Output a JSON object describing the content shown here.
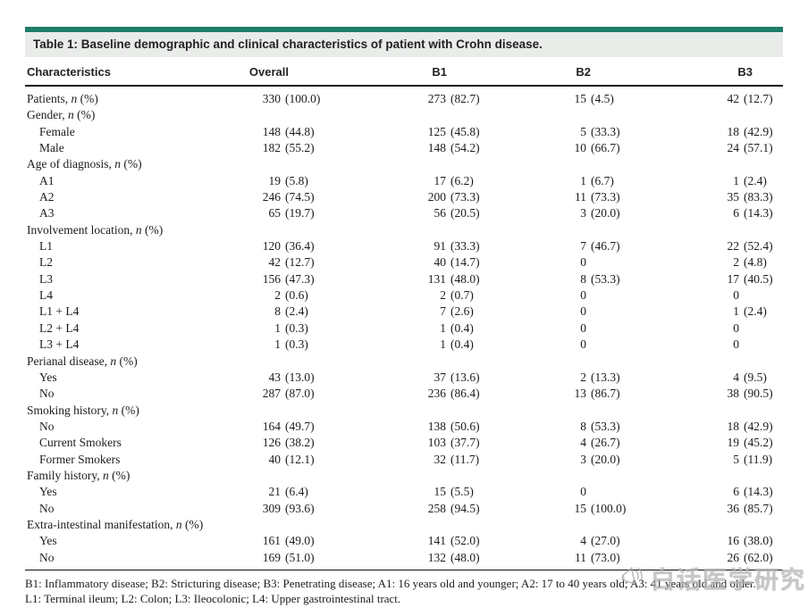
{
  "title": "Table 1: Baseline demographic and clinical characteristics of patient with Crohn disease.",
  "colors": {
    "accent_bar": "#1e7e68",
    "title_band_bg": "#e9ece9",
    "rule": "#0d0d0d"
  },
  "table": {
    "columns": [
      "Characteristics",
      "Overall",
      "B1",
      "B2",
      "B3"
    ],
    "rows": [
      {
        "label": "Patients, n (%)",
        "indent": 0,
        "cells": [
          "330 (100.0)",
          "273 (82.7)",
          "15 (4.5)",
          "42 (12.7)"
        ]
      },
      {
        "label": "Gender, n (%)",
        "indent": 0,
        "cells": [
          "",
          "",
          "",
          ""
        ]
      },
      {
        "label": "Female",
        "indent": 1,
        "cells": [
          "148 (44.8)",
          "125 (45.8)",
          "5 (33.3)",
          "18 (42.9)"
        ]
      },
      {
        "label": "Male",
        "indent": 1,
        "cells": [
          "182 (55.2)",
          "148 (54.2)",
          "10 (66.7)",
          "24 (57.1)"
        ]
      },
      {
        "label": "Age of diagnosis, n (%)",
        "indent": 0,
        "cells": [
          "",
          "",
          "",
          ""
        ]
      },
      {
        "label": "A1",
        "indent": 1,
        "cells": [
          "19 (5.8)",
          "17 (6.2)",
          "1 (6.7)",
          "1 (2.4)"
        ]
      },
      {
        "label": "A2",
        "indent": 1,
        "cells": [
          "246 (74.5)",
          "200 (73.3)",
          "11 (73.3)",
          "35 (83.3)"
        ]
      },
      {
        "label": "A3",
        "indent": 1,
        "cells": [
          "65 (19.7)",
          "56 (20.5)",
          "3 (20.0)",
          "6 (14.3)"
        ]
      },
      {
        "label": "Involvement location, n (%)",
        "indent": 0,
        "cells": [
          "",
          "",
          "",
          ""
        ]
      },
      {
        "label": "L1",
        "indent": 1,
        "cells": [
          "120 (36.4)",
          "91 (33.3)",
          "7 (46.7)",
          "22 (52.4)"
        ]
      },
      {
        "label": "L2",
        "indent": 1,
        "cells": [
          "42 (12.7)",
          "40 (14.7)",
          "0",
          "2 (4.8)"
        ]
      },
      {
        "label": "L3",
        "indent": 1,
        "cells": [
          "156 (47.3)",
          "131 (48.0)",
          "8 (53.3)",
          "17 (40.5)"
        ]
      },
      {
        "label": "L4",
        "indent": 1,
        "cells": [
          "2 (0.6)",
          "2 (0.7)",
          "0",
          "0"
        ]
      },
      {
        "label": "L1 + L4",
        "indent": 1,
        "cells": [
          "8 (2.4)",
          "7 (2.6)",
          "0",
          "1 (2.4)"
        ]
      },
      {
        "label": "L2 + L4",
        "indent": 1,
        "cells": [
          "1 (0.3)",
          "1 (0.4)",
          "0",
          "0"
        ]
      },
      {
        "label": "L3 + L4",
        "indent": 1,
        "cells": [
          "1 (0.3)",
          "1 (0.4)",
          "0",
          "0"
        ]
      },
      {
        "label": "Perianal disease, n (%)",
        "indent": 0,
        "cells": [
          "",
          "",
          "",
          ""
        ]
      },
      {
        "label": "Yes",
        "indent": 1,
        "cells": [
          "43 (13.0)",
          "37 (13.6)",
          "2 (13.3)",
          "4 (9.5)"
        ]
      },
      {
        "label": "No",
        "indent": 1,
        "cells": [
          "287 (87.0)",
          "236 (86.4)",
          "13 (86.7)",
          "38 (90.5)"
        ]
      },
      {
        "label": "Smoking history, n (%)",
        "indent": 0,
        "cells": [
          "",
          "",
          "",
          ""
        ]
      },
      {
        "label": "No",
        "indent": 1,
        "cells": [
          "164 (49.7)",
          "138 (50.6)",
          "8 (53.3)",
          "18 (42.9)"
        ]
      },
      {
        "label": "Current Smokers",
        "indent": 1,
        "cells": [
          "126 (38.2)",
          "103 (37.7)",
          "4 (26.7)",
          "19 (45.2)"
        ]
      },
      {
        "label": "Former Smokers",
        "indent": 1,
        "cells": [
          "40 (12.1)",
          "32 (11.7)",
          "3 (20.0)",
          "5 (11.9)"
        ]
      },
      {
        "label": "Family history, n (%)",
        "indent": 0,
        "cells": [
          "",
          "",
          "",
          ""
        ]
      },
      {
        "label": "Yes",
        "indent": 1,
        "cells": [
          "21 (6.4)",
          "15 (5.5)",
          "0",
          "6 (14.3)"
        ]
      },
      {
        "label": "No",
        "indent": 1,
        "cells": [
          "309 (93.6)",
          "258 (94.5)",
          "15 (100.0)",
          "36 (85.7)"
        ]
      },
      {
        "label": "Extra-intestinal manifestation, n (%)",
        "indent": 0,
        "cells": [
          "",
          "",
          "",
          ""
        ]
      },
      {
        "label": "Yes",
        "indent": 1,
        "cells": [
          "161 (49.0)",
          "141 (52.0)",
          "4 (27.0)",
          "16 (38.0)"
        ]
      },
      {
        "label": "No",
        "indent": 1,
        "cells": [
          "169 (51.0)",
          "132 (48.0)",
          "11 (73.0)",
          "26 (62.0)"
        ]
      }
    ]
  },
  "footnotes": [
    "B1: Inflammatory disease; B2: Stricturing disease; B3: Penetrating disease; A1: 16 years old and younger; A2: 17 to 40 years old; A3: 41 years old and older.",
    "L1: Terminal ileum; L2: Colon; L3: Ileocolonic; L4: Upper gastrointestinal tract."
  ],
  "watermark": {
    "icon": "megaphone-icon",
    "text": "白话医学研究"
  }
}
